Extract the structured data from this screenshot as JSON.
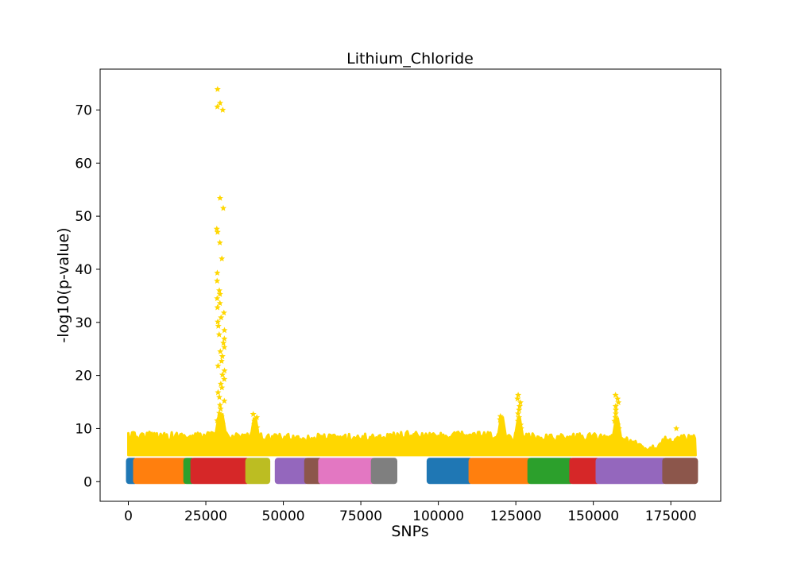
{
  "chart_data": {
    "type": "scatter",
    "title": "Lithium_Chloride",
    "xlabel": "SNPs",
    "ylabel": "-log10(p-value)",
    "xlim": [
      -9100,
      191100
    ],
    "ylim": [
      -3.7,
      77.7
    ],
    "xticks": [
      0,
      25000,
      50000,
      75000,
      100000,
      125000,
      150000,
      175000
    ],
    "xtick_labels": [
      "0",
      "25000",
      "50000",
      "75000",
      "100000",
      "125000",
      "150000",
      "175000"
    ],
    "yticks": [
      0,
      10,
      20,
      30,
      40,
      50,
      60,
      70
    ],
    "ytick_labels": [
      "0",
      "10",
      "20",
      "30",
      "40",
      "50",
      "60",
      "70"
    ],
    "grid": false,
    "legend": "none",
    "chromosome_blocks": {
      "description": "dense blocks of SNPs with -log10(p) between 0 and ~4.5, coloured per chromosome",
      "ymin": 0,
      "ymax": 4.5,
      "segments": [
        {
          "x": [
            0,
            2300
          ],
          "color": "#1f77b4"
        },
        {
          "x": [
            2300,
            18500
          ],
          "color": "#ff7f0e"
        },
        {
          "x": [
            18500,
            20800
          ],
          "color": "#2ca02c"
        },
        {
          "x": [
            20800,
            38500
          ],
          "color": "#d62728"
        },
        {
          "x": [
            38500,
            45000
          ],
          "color": "#bcbd22"
        },
        {
          "x": [
            48000,
            57500
          ],
          "color": "#9467bd"
        },
        {
          "x": [
            57500,
            62000
          ],
          "color": "#8c564b"
        },
        {
          "x": [
            62000,
            79000
          ],
          "color": "#e377c2"
        },
        {
          "x": [
            79000,
            86000
          ],
          "color": "#7f7f7f"
        },
        {
          "x": [
            97000,
            110500
          ],
          "color": "#1f77b4"
        },
        {
          "x": [
            110500,
            129500
          ],
          "color": "#ff7f0e"
        },
        {
          "x": [
            129500,
            143000
          ],
          "color": "#2ca02c"
        },
        {
          "x": [
            143000,
            151500
          ],
          "color": "#d62728"
        },
        {
          "x": [
            151500,
            173000
          ],
          "color": "#9467bd"
        },
        {
          "x": [
            173000,
            183000
          ],
          "color": "#8c564b"
        }
      ]
    },
    "significant_band": {
      "description": "yellow star markers for SNPs with -log10(p) above ~5",
      "color": "#ffd700",
      "x": [
        0,
        183000
      ],
      "ymin": 5.0,
      "ymax_profile": [
        [
          0,
          9.3
        ],
        [
          10000,
          9.5
        ],
        [
          20000,
          9.2
        ],
        [
          30000,
          9.6
        ],
        [
          40000,
          9.2
        ],
        [
          50000,
          9.0
        ],
        [
          60000,
          9.0
        ],
        [
          70000,
          9.0
        ],
        [
          80000,
          9.1
        ],
        [
          90000,
          9.5
        ],
        [
          100000,
          9.2
        ],
        [
          110000,
          9.5
        ],
        [
          120000,
          9.3
        ],
        [
          130000,
          9.2
        ],
        [
          140000,
          9.0
        ],
        [
          150000,
          9.3
        ],
        [
          160000,
          8.5
        ],
        [
          166000,
          7.2
        ],
        [
          170000,
          7.2
        ],
        [
          172000,
          8.5
        ],
        [
          183000,
          9.0
        ]
      ]
    },
    "peaks": [
      {
        "x": 29800,
        "values": [
          73.9,
          71.3,
          70.6,
          70.0,
          53.4,
          51.5,
          47.6,
          47.0,
          45.0,
          42.0,
          39.3,
          37.8,
          36.0,
          35.3,
          34.5,
          33.6,
          32.8,
          31.8,
          30.9,
          30.1,
          29.3,
          28.5,
          27.7,
          26.9,
          26.1,
          25.3,
          24.5,
          23.6,
          22.7,
          21.8,
          20.9,
          20.1,
          19.3,
          18.4,
          17.7,
          16.8,
          15.9,
          15.2,
          14.4,
          13.7,
          12.9,
          12.2,
          11.5,
          10.8
        ]
      },
      {
        "x": 40800,
        "values": [
          12.7,
          12.1,
          11.4,
          10.8,
          10.2
        ]
      },
      {
        "x": 120500,
        "values": [
          12.3,
          11.7,
          11.0,
          10.4
        ]
      },
      {
        "x": 126000,
        "values": [
          16.3,
          15.6,
          14.9,
          14.2,
          13.5,
          12.8,
          12.1,
          11.4,
          10.7,
          10.0
        ]
      },
      {
        "x": 157600,
        "values": [
          16.3,
          15.6,
          14.9,
          14.2,
          13.5,
          12.8,
          12.1,
          11.4,
          10.7,
          10.0
        ]
      },
      {
        "x": 176500,
        "values": [
          10.0
        ]
      }
    ]
  }
}
